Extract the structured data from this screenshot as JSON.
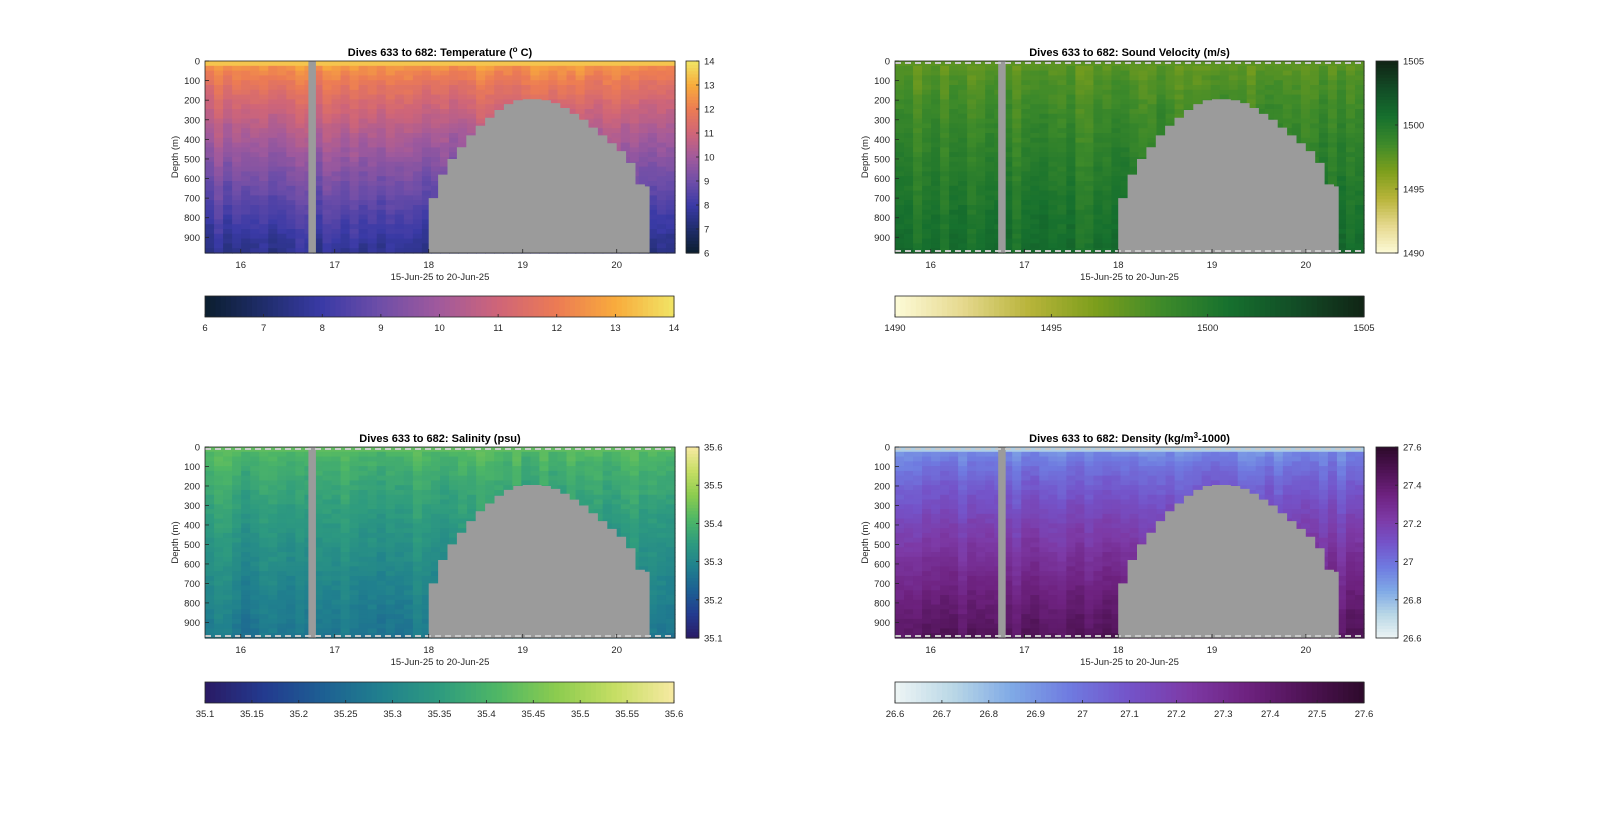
{
  "window": {
    "background": "#ffffff"
  },
  "chart_data": [
    {
      "type": "heatmap",
      "title": "Dives 633 to 682: Temperature (",
      "title_sup": "o",
      "title_end": " C)",
      "xlabel": "15-Jun-25 to 20-Jun-25",
      "ylabel": "Depth (m)",
      "xlim": [
        15.62,
        20.62
      ],
      "ylim": [
        0,
        980
      ],
      "xticks": [
        16,
        17,
        18,
        19,
        20
      ],
      "yticks": [
        0,
        100,
        200,
        300,
        400,
        500,
        600,
        700,
        800,
        900
      ],
      "colorbar_range": [
        6,
        14
      ],
      "colorbar_ticks": [
        "6",
        "7",
        "8",
        "9",
        "10",
        "11",
        "12",
        "13",
        "14"
      ],
      "horizontal_colorbar_ticks": [
        "6",
        "7",
        "8",
        "9",
        "10",
        "11",
        "12",
        "13",
        "14"
      ],
      "colormap": [
        "#0b1e2e",
        "#1f2d6b",
        "#3a3aa6",
        "#6f4ea8",
        "#a15a9c",
        "#cf6578",
        "#ec7b54",
        "#f8ab3c",
        "#f1e565"
      ],
      "surface_value": 12.8,
      "deep_value": 7.6,
      "data_gap_dates": [
        16.72,
        16.8
      ],
      "bathymetry": [
        [
          18.0,
          700
        ],
        [
          18.1,
          580
        ],
        [
          18.2,
          500
        ],
        [
          18.3,
          440
        ],
        [
          18.4,
          380
        ],
        [
          18.5,
          330
        ],
        [
          18.6,
          290
        ],
        [
          18.7,
          250
        ],
        [
          18.8,
          220
        ],
        [
          18.9,
          200
        ],
        [
          19.0,
          195
        ],
        [
          19.1,
          195
        ],
        [
          19.2,
          200
        ],
        [
          19.3,
          215
        ],
        [
          19.4,
          240
        ],
        [
          19.5,
          270
        ],
        [
          19.6,
          300
        ],
        [
          19.7,
          340
        ],
        [
          19.8,
          380
        ],
        [
          19.9,
          420
        ],
        [
          20.0,
          460
        ],
        [
          20.1,
          520
        ],
        [
          20.2,
          630
        ],
        [
          20.3,
          640
        ],
        [
          20.35,
          980
        ]
      ]
    },
    {
      "type": "heatmap",
      "title": "Dives 633 to 682: Sound Velocity (m/s)",
      "xlabel": "15-Jun-25 to 20-Jun-25",
      "ylabel": "Depth (m)",
      "xlim": [
        15.62,
        20.62
      ],
      "ylim": [
        0,
        980
      ],
      "xticks": [
        16,
        17,
        18,
        19,
        20
      ],
      "yticks": [
        0,
        100,
        200,
        300,
        400,
        500,
        600,
        700,
        800,
        900
      ],
      "colorbar_range": [
        1490,
        1505
      ],
      "colorbar_ticks": [
        "1490",
        "1495",
        "1500",
        "1505"
      ],
      "horizontal_colorbar_ticks": [
        "1490",
        "1495",
        "1500",
        "1505"
      ],
      "colormap": [
        "#fdfbd8",
        "#e6d98f",
        "#b8b43a",
        "#7c9e1c",
        "#3d8a2a",
        "#16702e",
        "#124c26",
        "#112415"
      ],
      "surface_value": 1497.2,
      "deep_value": 1500.8,
      "data_gap_dates": [
        16.72,
        16.8
      ],
      "bathymetry": [
        [
          18.0,
          700
        ],
        [
          18.1,
          580
        ],
        [
          18.2,
          500
        ],
        [
          18.3,
          440
        ],
        [
          18.4,
          380
        ],
        [
          18.5,
          330
        ],
        [
          18.6,
          290
        ],
        [
          18.7,
          250
        ],
        [
          18.8,
          220
        ],
        [
          18.9,
          200
        ],
        [
          19.0,
          195
        ],
        [
          19.1,
          195
        ],
        [
          19.2,
          200
        ],
        [
          19.3,
          215
        ],
        [
          19.4,
          240
        ],
        [
          19.5,
          270
        ],
        [
          19.6,
          300
        ],
        [
          19.7,
          340
        ],
        [
          19.8,
          380
        ],
        [
          19.9,
          420
        ],
        [
          20.0,
          460
        ],
        [
          20.1,
          520
        ],
        [
          20.2,
          630
        ],
        [
          20.3,
          640
        ],
        [
          20.35,
          980
        ]
      ]
    },
    {
      "type": "heatmap",
      "title": "Dives 633 to 682: Salinity (psu)",
      "xlabel": "15-Jun-25 to 20-Jun-25",
      "ylabel": "Depth (m)",
      "xlim": [
        15.62,
        20.62
      ],
      "ylim": [
        0,
        980
      ],
      "xticks": [
        16,
        17,
        18,
        19,
        20
      ],
      "yticks": [
        0,
        100,
        200,
        300,
        400,
        500,
        600,
        700,
        800,
        900
      ],
      "colorbar_range": [
        35.1,
        35.6
      ],
      "colorbar_ticks": [
        "35.1",
        "35.2",
        "35.3",
        "35.4",
        "35.5",
        "35.6"
      ],
      "horizontal_colorbar_ticks": [
        "35.1",
        "35.15",
        "35.2",
        "35.25",
        "35.3",
        "35.35",
        "35.4",
        "35.45",
        "35.5",
        "35.55",
        "35.6"
      ],
      "colormap": [
        "#2a1a64",
        "#233a8f",
        "#1d5f93",
        "#20808e",
        "#2e9b7f",
        "#4fb765",
        "#8ccc4f",
        "#c6de64",
        "#f7e9a2"
      ],
      "surface_value": 35.42,
      "deep_value": 35.27,
      "data_gap_dates": [
        16.72,
        16.8
      ],
      "bathymetry": [
        [
          18.0,
          700
        ],
        [
          18.1,
          580
        ],
        [
          18.2,
          500
        ],
        [
          18.3,
          440
        ],
        [
          18.4,
          380
        ],
        [
          18.5,
          330
        ],
        [
          18.6,
          290
        ],
        [
          18.7,
          250
        ],
        [
          18.8,
          220
        ],
        [
          18.9,
          200
        ],
        [
          19.0,
          195
        ],
        [
          19.1,
          195
        ],
        [
          19.2,
          200
        ],
        [
          19.3,
          215
        ],
        [
          19.4,
          240
        ],
        [
          19.5,
          270
        ],
        [
          19.6,
          300
        ],
        [
          19.7,
          340
        ],
        [
          19.8,
          380
        ],
        [
          19.9,
          420
        ],
        [
          20.0,
          460
        ],
        [
          20.1,
          520
        ],
        [
          20.2,
          630
        ],
        [
          20.3,
          640
        ],
        [
          20.35,
          980
        ]
      ]
    },
    {
      "type": "heatmap",
      "title": "Dives 633 to 682: Density (kg/m",
      "title_sup": "3",
      "title_end": "-1000)",
      "xlabel": "15-Jun-25 to 20-Jun-25",
      "ylabel": "Depth (m)",
      "xlim": [
        15.62,
        20.62
      ],
      "ylim": [
        0,
        980
      ],
      "xticks": [
        16,
        17,
        18,
        19,
        20
      ],
      "yticks": [
        0,
        100,
        200,
        300,
        400,
        500,
        600,
        700,
        800,
        900
      ],
      "colorbar_range": [
        26.6,
        27.6
      ],
      "colorbar_ticks": [
        "26.6",
        "26.8",
        "27",
        "27.2",
        "27.4",
        "27.6"
      ],
      "horizontal_colorbar_ticks": [
        "26.6",
        "26.7",
        "26.8",
        "26.9",
        "27",
        "27.1",
        "27.2",
        "27.3",
        "27.4",
        "27.5",
        "27.6"
      ],
      "colormap": [
        "#eef5f5",
        "#b9d7e6",
        "#7fa9e6",
        "#6f7ae0",
        "#7453c9",
        "#7d3aa6",
        "#6e2280",
        "#4f1355",
        "#2d0a2b"
      ],
      "surface_value": 26.9,
      "deep_value": 27.45,
      "data_gap_dates": [
        16.72,
        16.8
      ],
      "bathymetry": [
        [
          18.0,
          700
        ],
        [
          18.1,
          580
        ],
        [
          18.2,
          500
        ],
        [
          18.3,
          440
        ],
        [
          18.4,
          380
        ],
        [
          18.5,
          330
        ],
        [
          18.6,
          290
        ],
        [
          18.7,
          250
        ],
        [
          18.8,
          220
        ],
        [
          18.9,
          200
        ],
        [
          19.0,
          195
        ],
        [
          19.1,
          195
        ],
        [
          19.2,
          200
        ],
        [
          19.3,
          215
        ],
        [
          19.4,
          240
        ],
        [
          19.5,
          270
        ],
        [
          19.6,
          300
        ],
        [
          19.7,
          340
        ],
        [
          19.8,
          380
        ],
        [
          19.9,
          420
        ],
        [
          20.0,
          460
        ],
        [
          20.1,
          520
        ],
        [
          20.2,
          630
        ],
        [
          20.3,
          640
        ],
        [
          20.35,
          980
        ]
      ]
    }
  ]
}
